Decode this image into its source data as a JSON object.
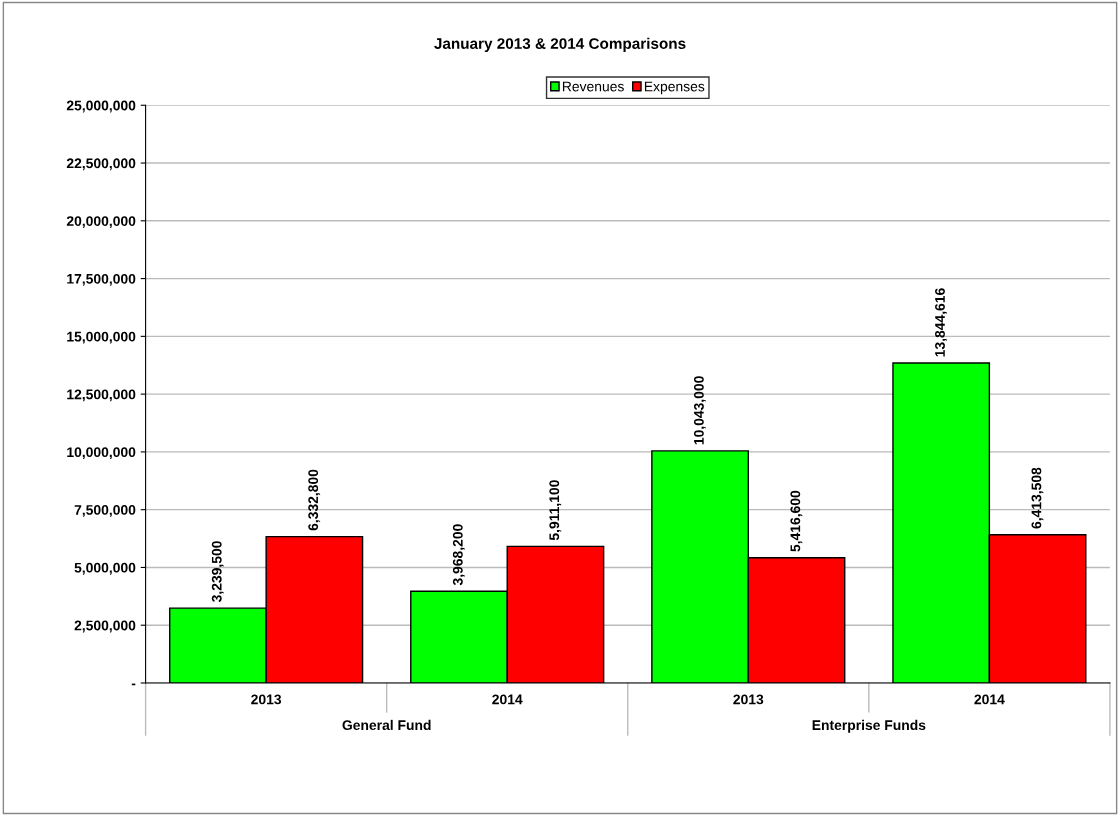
{
  "chart_data": {
    "type": "bar",
    "title": "January 2013 & 2014 Comparisons",
    "categories": [
      "2013",
      "2014",
      "2013",
      "2014"
    ],
    "annotations": [
      "General Fund",
      "Enterprise Funds"
    ],
    "series": [
      {
        "name": "Revenues",
        "color": "#00ff00",
        "values": [
          3239500,
          3968200,
          10043000,
          13844616
        ],
        "value_labels": [
          "3,239,500",
          "3,968,200",
          "10,043,000",
          "13,844,616"
        ]
      },
      {
        "name": "Expenses",
        "color": "#ff0000",
        "values": [
          6332800,
          5911100,
          5416600,
          6413508
        ],
        "value_labels": [
          "6,332,800",
          "5,911,100",
          "5,416,600",
          "6,413,508"
        ]
      }
    ],
    "ylim": [
      0,
      25000000
    ],
    "yticks": [
      {
        "value": 0,
        "label": "-"
      },
      {
        "value": 2500000,
        "label": "2,500,000"
      },
      {
        "value": 5000000,
        "label": "5,000,000"
      },
      {
        "value": 7500000,
        "label": "7,500,000"
      },
      {
        "value": 10000000,
        "label": "10,000,000"
      },
      {
        "value": 12500000,
        "label": "12,500,000"
      },
      {
        "value": 15000000,
        "label": "15,000,000"
      },
      {
        "value": 17500000,
        "label": "17,500,000"
      },
      {
        "value": 20000000,
        "label": "20,000,000"
      },
      {
        "value": 22500000,
        "label": "22,500,000"
      },
      {
        "value": 25000000,
        "label": "25,000,000"
      }
    ],
    "grid": "y",
    "legend": "top"
  }
}
